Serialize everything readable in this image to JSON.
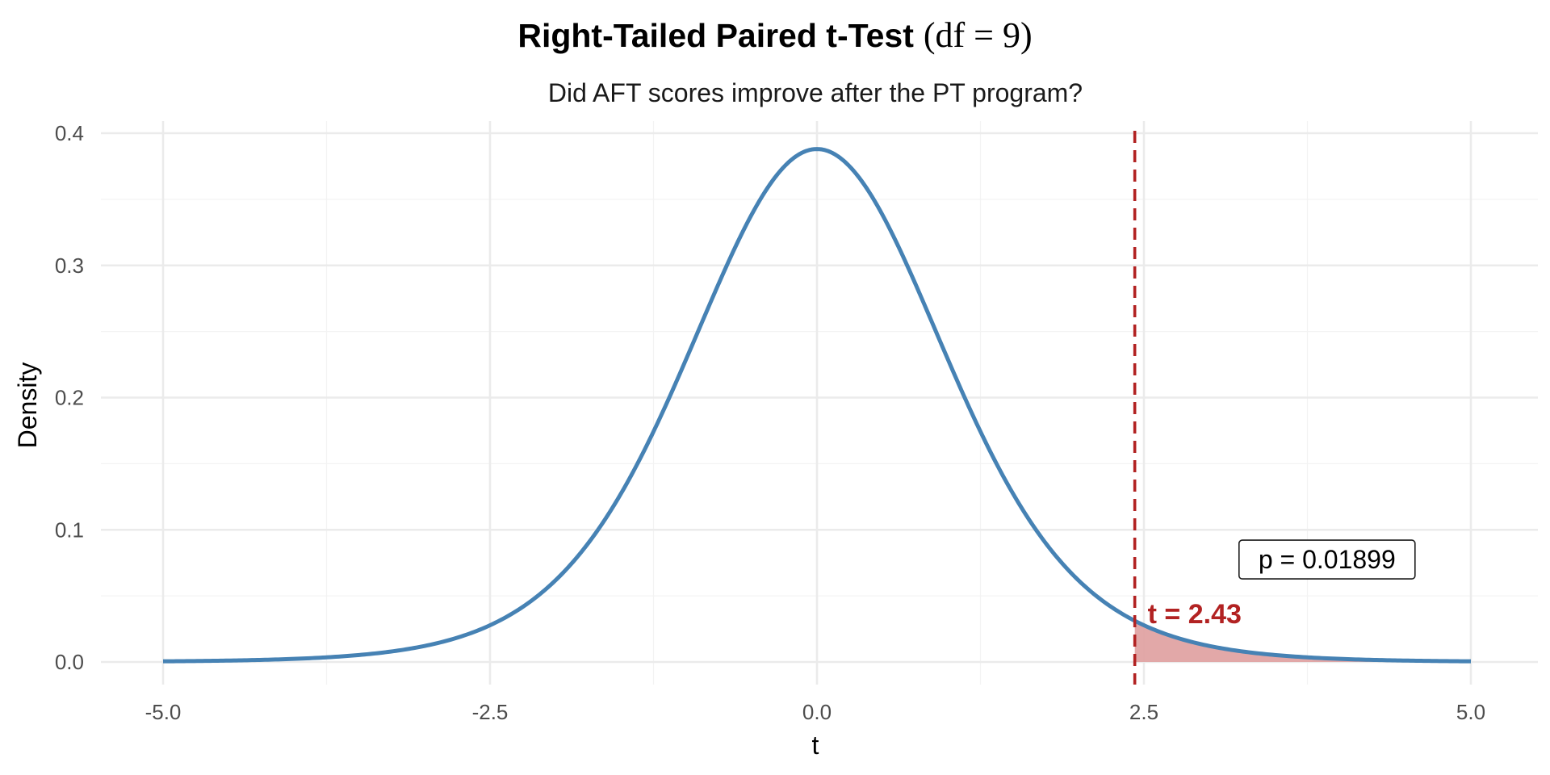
{
  "chart_data": {
    "type": "line",
    "title": "Right-Tailed Paired t-Test",
    "title_math": "(df = 9)",
    "subtitle": "Did AFT scores improve after the PT program?",
    "xlabel": "t",
    "ylabel": "Density",
    "xlim": [
      -5,
      5
    ],
    "ylim": [
      0,
      0.4
    ],
    "x_ticks": [
      -5,
      -2.5,
      0,
      2.5,
      5
    ],
    "x_tick_labels": [
      "-5.0",
      "-2.5",
      "0.0",
      "2.5",
      "5.0"
    ],
    "y_ticks": [
      0,
      0.1,
      0.2,
      0.3,
      0.4
    ],
    "y_tick_labels": [
      "0.0",
      "0.1",
      "0.2",
      "0.3",
      "0.4"
    ],
    "grid": true,
    "legend": "none",
    "distribution": "Student t",
    "df": 9,
    "t_statistic": 2.43,
    "t_label": "t = 2.43",
    "p_label": "p = 0.01899",
    "shaded_region": "right tail, t ≥ 2.43",
    "series": [
      {
        "x": [
          -5.0,
          -4.5,
          -4.0,
          -3.5,
          -3.0,
          -2.5,
          -2.0,
          -1.5,
          -1.0,
          -0.5,
          0.0,
          0.5,
          1.0,
          1.5,
          2.0,
          2.5,
          3.0,
          3.5,
          4.0,
          4.5,
          5.0
        ],
        "y": [
          0.001,
          0.0017,
          0.003,
          0.0058,
          0.0114,
          0.0269,
          0.0611,
          0.124,
          0.2297,
          0.3377,
          0.388,
          0.3377,
          0.2297,
          0.124,
          0.0611,
          0.0269,
          0.0114,
          0.0058,
          0.003,
          0.0017,
          0.001
        ]
      }
    ],
    "colors": {
      "curve": "#4682b4",
      "critical_line": "#b22222",
      "tail_fill": "#e0a3a3",
      "t_label": "#b22222"
    }
  }
}
